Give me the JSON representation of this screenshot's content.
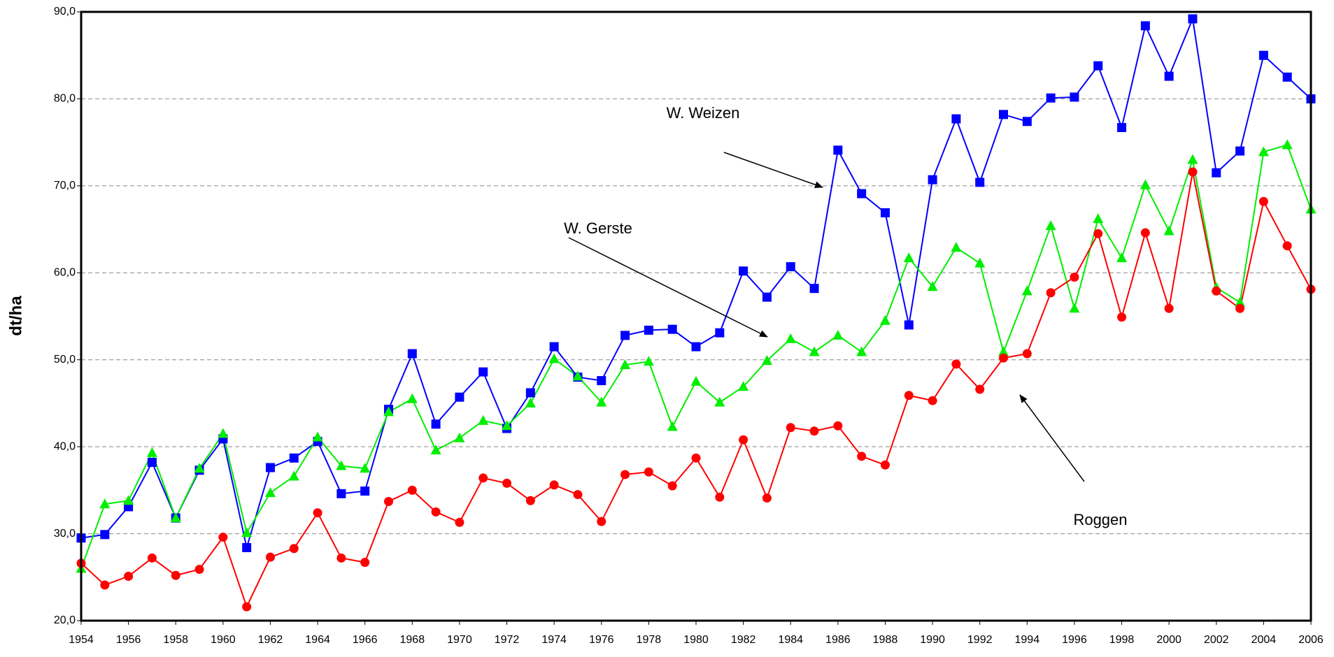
{
  "chart_data": {
    "type": "line",
    "ylabel": "dt/ha",
    "x": [
      1954,
      1955,
      1956,
      1957,
      1958,
      1959,
      1960,
      1961,
      1962,
      1963,
      1964,
      1965,
      1966,
      1967,
      1968,
      1969,
      1970,
      1971,
      1972,
      1973,
      1974,
      1975,
      1976,
      1977,
      1978,
      1979,
      1980,
      1981,
      1982,
      1983,
      1984,
      1985,
      1986,
      1987,
      1988,
      1989,
      1990,
      1991,
      1992,
      1993,
      1994,
      1995,
      1996,
      1997,
      1998,
      1999,
      2000,
      2001,
      2002,
      2003,
      2004,
      2005,
      2006
    ],
    "xlim": [
      1954,
      2006
    ],
    "xticks": [
      1954,
      1956,
      1958,
      1960,
      1962,
      1964,
      1966,
      1968,
      1970,
      1972,
      1974,
      1976,
      1978,
      1980,
      1982,
      1984,
      1986,
      1988,
      1990,
      1992,
      1994,
      1996,
      1998,
      2000,
      2002,
      2004,
      2006
    ],
    "ylim": [
      20,
      90
    ],
    "yticks": [
      {
        "value": 20,
        "label": "20,0"
      },
      {
        "value": 30,
        "label": "30,0"
      },
      {
        "value": 40,
        "label": "40,0"
      },
      {
        "value": 50,
        "label": "50,0"
      },
      {
        "value": 60,
        "label": "60,0"
      },
      {
        "value": 70,
        "label": "70,0"
      },
      {
        "value": 80,
        "label": "80,0"
      },
      {
        "value": 90,
        "label": "90,0"
      }
    ],
    "grid": true,
    "series": [
      {
        "color": "#0000ff",
        "marker": "square",
        "values": [
          29.5,
          29.9,
          33.1,
          38.2,
          31.8,
          37.3,
          40.9,
          28.4,
          37.6,
          38.7,
          40.6,
          34.6,
          34.9,
          44.3,
          50.7,
          42.6,
          45.7,
          48.6,
          42.1,
          46.2,
          51.5,
          48.0,
          47.6,
          52.8,
          53.4,
          53.5,
          51.5,
          53.1,
          60.2,
          57.2,
          60.7,
          58.2,
          74.1,
          69.1,
          66.9,
          54.0,
          70.7,
          77.7,
          70.4,
          78.2,
          77.4,
          80.1,
          80.2,
          83.8,
          76.7,
          88.4,
          82.6,
          89.2,
          71.5,
          74.0,
          85.0,
          82.5,
          80.0
        ]
      },
      {
        "color": "#00ee00",
        "marker": "triangle",
        "values": [
          26.0,
          33.4,
          33.8,
          39.3,
          31.8,
          37.5,
          41.5,
          30.1,
          34.7,
          36.6,
          41.1,
          37.8,
          37.5,
          44.0,
          45.5,
          39.6,
          41.0,
          43.0,
          42.4,
          45.0,
          50.1,
          48.1,
          45.1,
          49.4,
          49.8,
          42.3,
          47.5,
          45.1,
          46.9,
          49.9,
          52.4,
          50.9,
          52.8,
          50.9,
          54.5,
          61.7,
          58.4,
          62.9,
          61.1,
          50.9,
          57.9,
          65.4,
          55.9,
          66.2,
          61.7,
          70.1,
          64.8,
          73.0,
          58.3,
          56.6,
          73.9,
          74.7,
          67.3
        ]
      },
      {
        "color": "#ff0000",
        "marker": "circle",
        "values": [
          26.6,
          24.1,
          25.1,
          27.2,
          25.2,
          25.9,
          29.6,
          21.6,
          27.3,
          28.3,
          32.4,
          27.2,
          26.7,
          33.7,
          35.0,
          32.5,
          31.3,
          36.4,
          35.8,
          33.8,
          35.6,
          34.5,
          31.4,
          36.8,
          37.1,
          35.5,
          38.7,
          34.2,
          40.8,
          34.1,
          42.2,
          41.8,
          42.4,
          38.9,
          37.9,
          45.9,
          45.3,
          49.5,
          46.6,
          50.2,
          50.7,
          57.7,
          59.5,
          64.5,
          54.9,
          64.6,
          55.9,
          71.6,
          57.9,
          55.9,
          68.2,
          63.1,
          58.1
        ]
      }
    ],
    "annotations": [
      "W. Weizen",
      "W. Gerste",
      "Roggen"
    ]
  }
}
